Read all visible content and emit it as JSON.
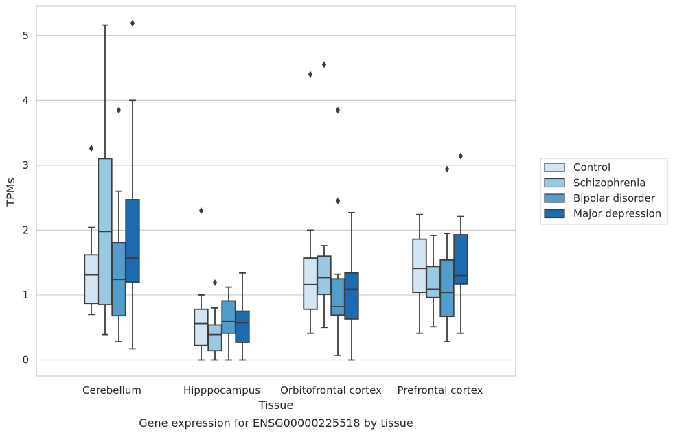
{
  "chart_data": {
    "type": "boxplot",
    "title": "Gene expression for ENSG00000225518 by tissue",
    "xlabel": "Tissue",
    "ylabel": "TPMs",
    "ylim": [
      -0.25,
      5.45
    ],
    "yticks": [
      "0",
      "1",
      "2",
      "3",
      "4",
      "5"
    ],
    "grid": "horizontal",
    "legend_position": "right",
    "categories": [
      "Cerebellum",
      "Hipppocampus",
      "Orbitofrontal cortex",
      "Prefrontal cortex"
    ],
    "series": [
      {
        "name": "Control",
        "color": "#d3e4f3",
        "boxes": [
          {
            "whisker_low": 0.7,
            "q1": 0.87,
            "median": 1.31,
            "q3": 1.62,
            "whisker_high": 2.04,
            "outliers": [
              3.26
            ]
          },
          {
            "whisker_low": 0.0,
            "q1": 0.22,
            "median": 0.56,
            "q3": 0.78,
            "whisker_high": 1.0,
            "outliers": [
              2.3
            ]
          },
          {
            "whisker_low": 0.41,
            "q1": 0.78,
            "median": 1.16,
            "q3": 1.57,
            "whisker_high": 2.0,
            "outliers": [
              4.4
            ]
          },
          {
            "whisker_low": 0.41,
            "q1": 1.04,
            "median": 1.41,
            "q3": 1.86,
            "whisker_high": 2.24,
            "outliers": []
          }
        ]
      },
      {
        "name": "Schizophrenia",
        "color": "#9ac8e0",
        "boxes": [
          {
            "whisker_low": 0.39,
            "q1": 0.85,
            "median": 1.98,
            "q3": 3.1,
            "whisker_high": 5.16,
            "outliers": []
          },
          {
            "whisker_low": 0.0,
            "q1": 0.14,
            "median": 0.39,
            "q3": 0.54,
            "whisker_high": 0.8,
            "outliers": [
              1.19
            ]
          },
          {
            "whisker_low": 0.5,
            "q1": 1.01,
            "median": 1.27,
            "q3": 1.6,
            "whisker_high": 1.76,
            "outliers": [
              4.55
            ]
          },
          {
            "whisker_low": 0.51,
            "q1": 0.96,
            "median": 1.09,
            "q3": 1.44,
            "whisker_high": 1.92,
            "outliers": []
          }
        ]
      },
      {
        "name": "Bipolar disorder",
        "color": "#529dcc",
        "boxes": [
          {
            "whisker_low": 0.28,
            "q1": 0.68,
            "median": 1.24,
            "q3": 1.81,
            "whisker_high": 2.6,
            "outliers": [
              3.85
            ]
          },
          {
            "whisker_low": 0.0,
            "q1": 0.41,
            "median": 0.59,
            "q3": 0.91,
            "whisker_high": 1.12,
            "outliers": []
          },
          {
            "whisker_low": 0.07,
            "q1": 0.69,
            "median": 0.82,
            "q3": 1.25,
            "whisker_high": 1.32,
            "outliers": [
              2.45,
              3.85
            ]
          },
          {
            "whisker_low": 0.28,
            "q1": 0.67,
            "median": 1.04,
            "q3": 1.54,
            "whisker_high": 1.95,
            "outliers": [
              2.94
            ]
          }
        ]
      },
      {
        "name": "Major depression",
        "color": "#1c6aaf",
        "boxes": [
          {
            "whisker_low": 0.17,
            "q1": 1.2,
            "median": 1.57,
            "q3": 2.47,
            "whisker_high": 4.0,
            "outliers": [
              5.19
            ]
          },
          {
            "whisker_low": 0.0,
            "q1": 0.27,
            "median": 0.57,
            "q3": 0.75,
            "whisker_high": 1.34,
            "outliers": []
          },
          {
            "whisker_low": 0.0,
            "q1": 0.63,
            "median": 1.09,
            "q3": 1.34,
            "whisker_high": 2.27,
            "outliers": []
          },
          {
            "whisker_low": 0.41,
            "q1": 1.17,
            "median": 1.3,
            "q3": 1.93,
            "whisker_high": 2.21,
            "outliers": [
              3.14
            ]
          }
        ]
      }
    ]
  }
}
